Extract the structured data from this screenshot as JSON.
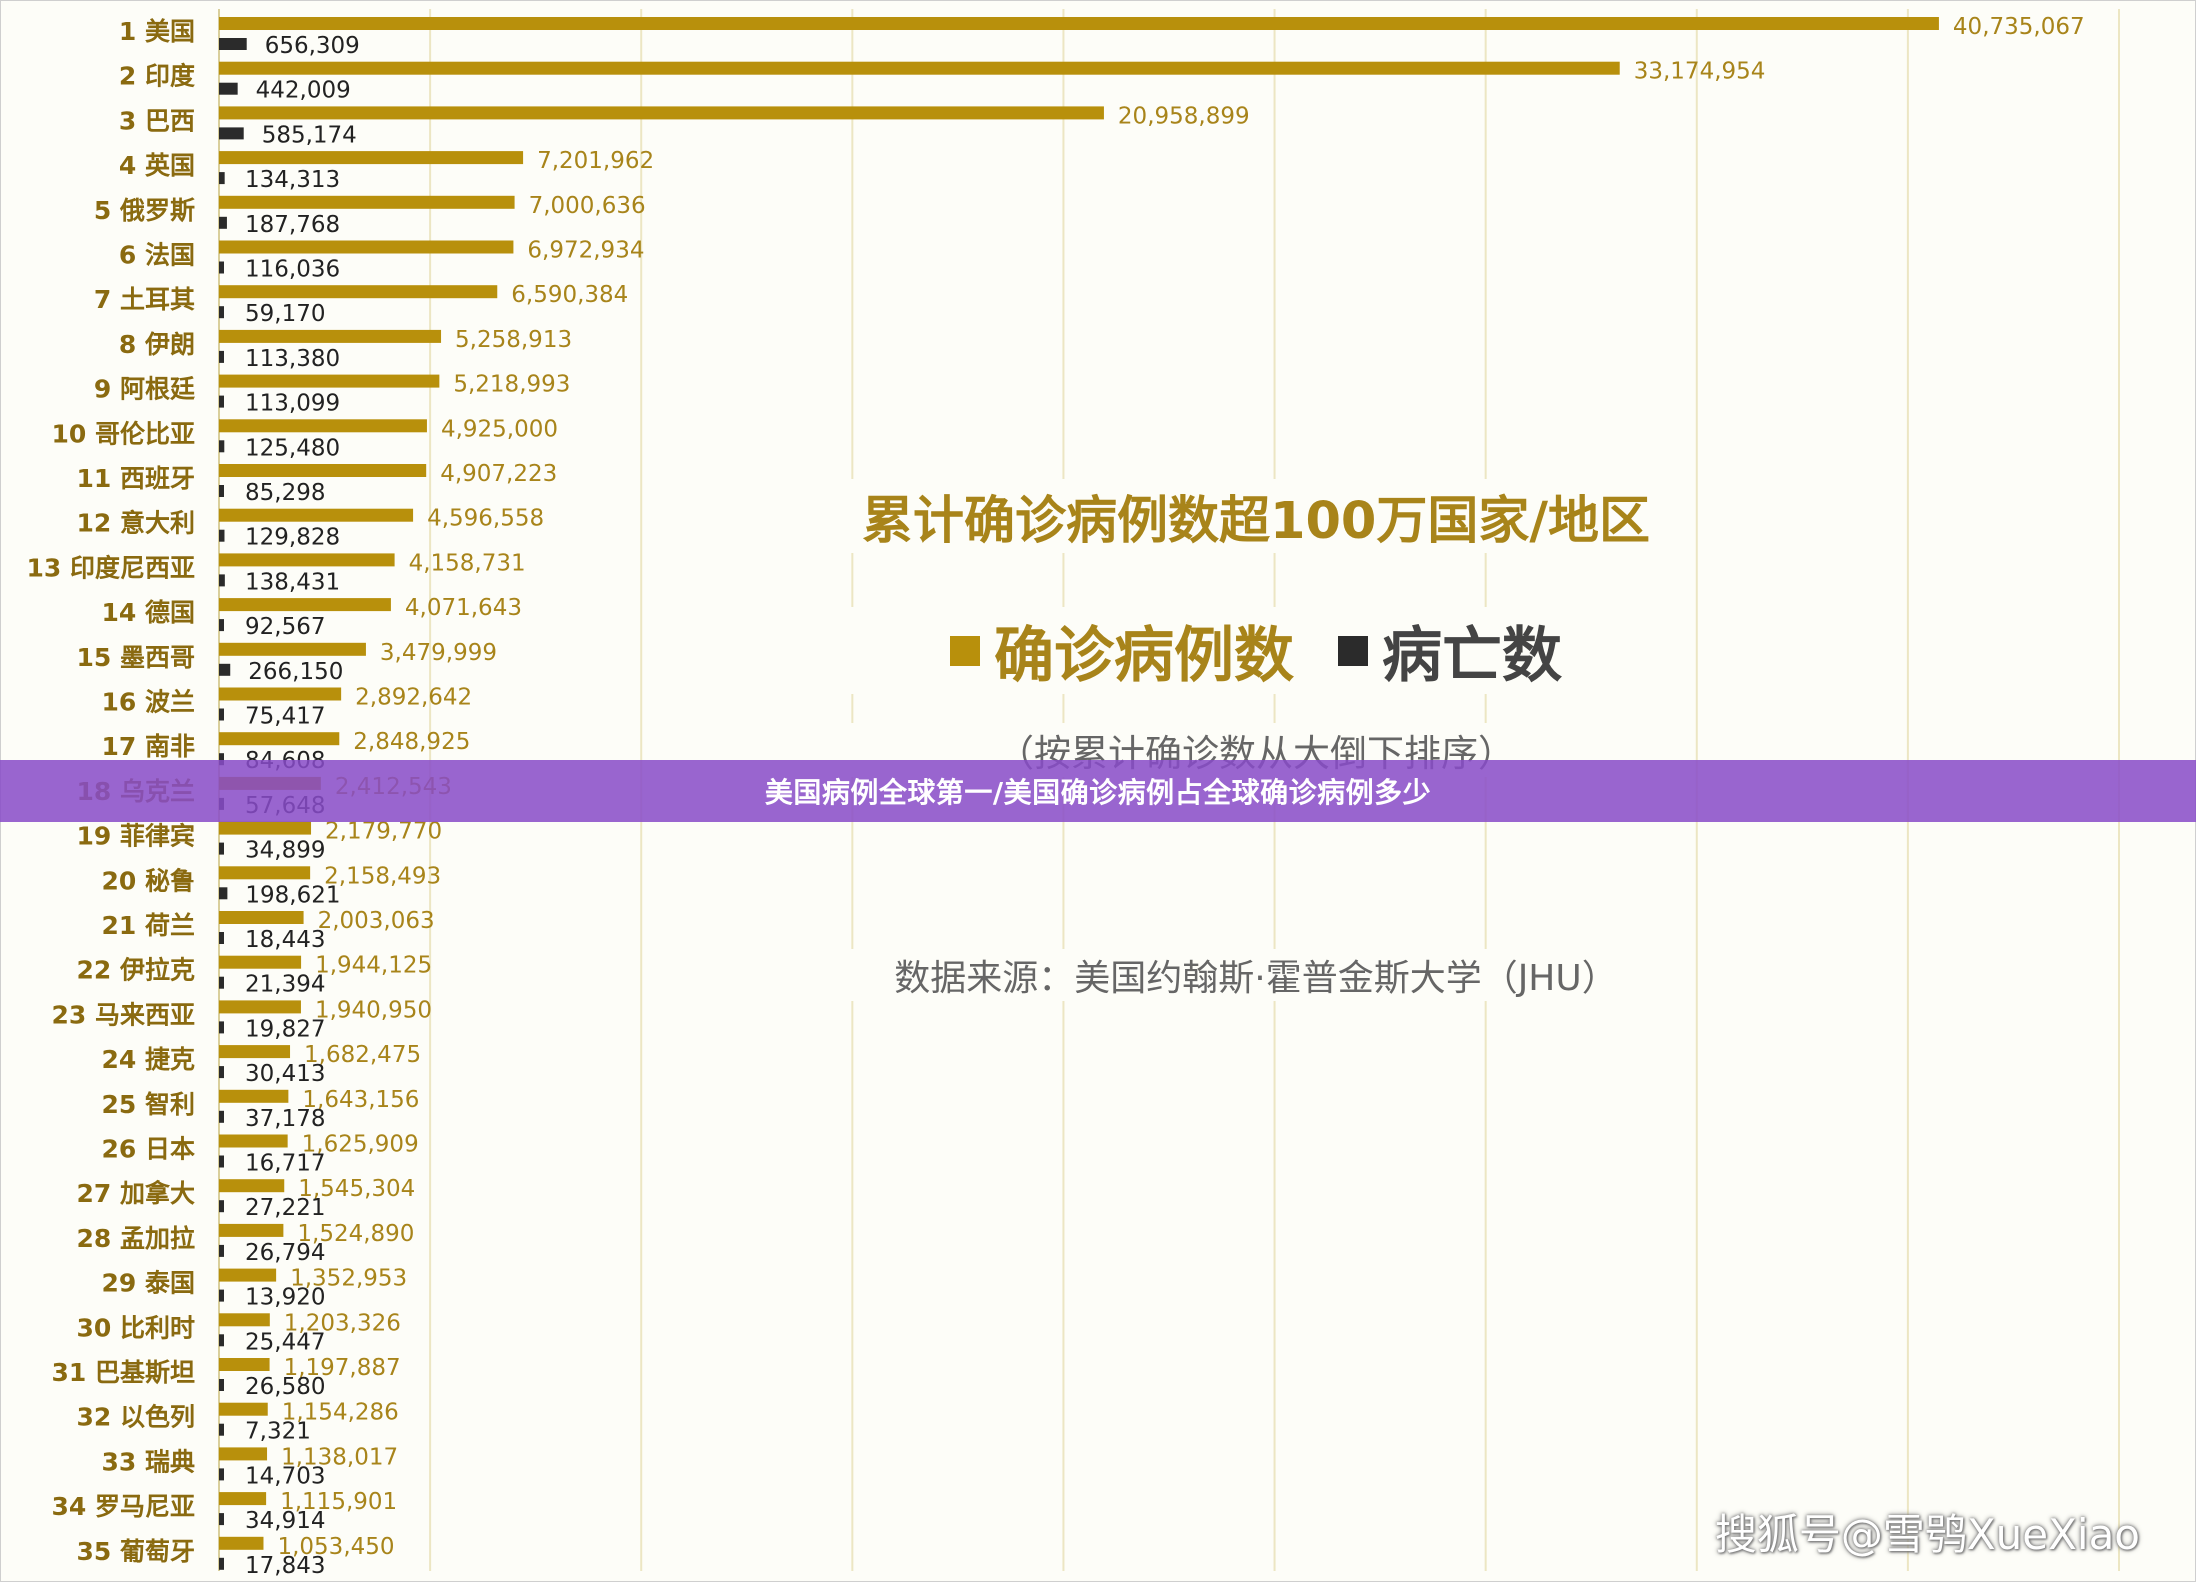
{
  "page": {
    "overlay_title": "美国病例全球第一/美国确诊病例占全球确诊病例多少",
    "watermark": "搜狐号@雪鸮XueXiao"
  },
  "colors": {
    "confirmed": "#b8900c",
    "deaths": "#2b2b2b",
    "grid": "#ece6c3",
    "title": "#a8841a",
    "label": "#8a6a10",
    "value": "#a8841a",
    "death_value": "#222222",
    "banner": "#884cc8"
  },
  "chart_data": {
    "type": "bar",
    "orientation": "horizontal",
    "title": "累计确诊病例数超100万国家/地区",
    "subtitle": "（按累计确诊数从大倒下排序）",
    "source": "数据来源：美国约翰斯·霍普金斯大学（JHU）",
    "legend_position": "center",
    "xlim": [
      0,
      45000000
    ],
    "grid": true,
    "categories": [
      "1 美国",
      "2 印度",
      "3 巴西",
      "4 英国",
      "5 俄罗斯",
      "6 法国",
      "7 土耳其",
      "8 伊朗",
      "9 阿根廷",
      "10 哥伦比亚",
      "11 西班牙",
      "12 意大利",
      "13 印度尼西亚",
      "14 德国",
      "15 墨西哥",
      "16 波兰",
      "17 南非",
      "18 乌克兰",
      "19 菲律宾",
      "20 秘鲁",
      "21 荷兰",
      "22 伊拉克",
      "23 马来西亚",
      "24 捷克",
      "25 智利",
      "26 日本",
      "27 加拿大",
      "28 孟加拉",
      "29 泰国",
      "30 比利时",
      "31 巴基斯坦",
      "32 以色列",
      "33 瑞典",
      "34 罗马尼亚",
      "35 葡萄牙"
    ],
    "series": [
      {
        "name": "确诊病例数",
        "values": [
          40735067,
          33174954,
          20958899,
          7201962,
          7000636,
          6972934,
          6590384,
          5258913,
          5218993,
          4925000,
          4907223,
          4596558,
          4158731,
          4071643,
          3479999,
          2892642,
          2848925,
          2412543,
          2179770,
          2158493,
          2003063,
          1944125,
          1940950,
          1682475,
          1643156,
          1625909,
          1545304,
          1524890,
          1352953,
          1203326,
          1197887,
          1154286,
          1138017,
          1115901,
          1053450
        ],
        "labels": [
          "40,735,067",
          "33,174,954",
          "20,958,899",
          "7,201,962",
          "7,000,636",
          "6,972,934",
          "6,590,384",
          "5,258,913",
          "5,218,993",
          "4,925,000",
          "4,907,223",
          "4,596,558",
          "4,158,731",
          "4,071,643",
          "3,479,999",
          "2,892,642",
          "2,848,925",
          "2,412,543",
          "2,179,770",
          "2,158,493",
          "2,003,063",
          "1,944,125",
          "1,940,950",
          "1,682,475",
          "1,643,156",
          "1,625,909",
          "1,545,304",
          "1,524,890",
          "1,352,953",
          "1,203,326",
          "1,197,887",
          "1,154,286",
          "1,138,017",
          "1,115,901",
          "1,053,450"
        ]
      },
      {
        "name": "病亡数",
        "values": [
          656309,
          442009,
          585174,
          134313,
          187768,
          116036,
          59170,
          113380,
          113099,
          125480,
          85298,
          129828,
          138431,
          92567,
          266150,
          75417,
          84608,
          57648,
          34899,
          198621,
          18443,
          21394,
          19827,
          30413,
          37178,
          16717,
          27221,
          26794,
          13920,
          25447,
          26580,
          7321,
          14703,
          34914,
          17843
        ],
        "labels": [
          "656,309",
          "442,009",
          "585,174",
          "134,313",
          "187,768",
          "116,036",
          "59,170",
          "113,380",
          "113,099",
          "125,480",
          "85,298",
          "129,828",
          "138,431",
          "92,567",
          "266,150",
          "75,417",
          "84,608",
          "57,648",
          "34,899",
          "198,621",
          "18,443",
          "21,394",
          "19,827",
          "30,413",
          "37,178",
          "16,717",
          "27,221",
          "26,794",
          "13,920",
          "25,447",
          "26,580",
          "7,321",
          "14,703",
          "34,914",
          "17,843"
        ]
      }
    ]
  }
}
